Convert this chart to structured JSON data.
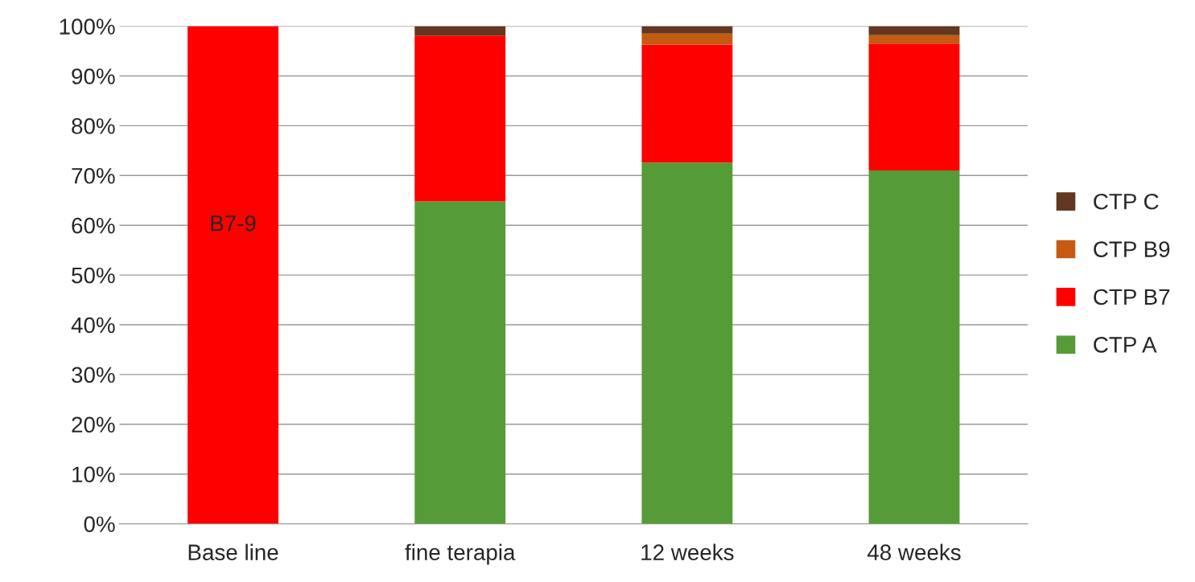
{
  "chart_data": {
    "type": "bar",
    "stacked": true,
    "categories": [
      "Base line",
      "fine terapia",
      "12 weeks",
      "48 weeks"
    ],
    "series": [
      {
        "name": "CTP A",
        "color": "#559b37",
        "values": [
          0,
          64.8,
          72.6,
          71.0
        ]
      },
      {
        "name": "CTP B7",
        "color": "#ff0000",
        "values": [
          100,
          33.3,
          23.7,
          25.5
        ]
      },
      {
        "name": "CTP B9",
        "color": "#c55a11",
        "values": [
          0,
          0,
          2.2,
          1.7
        ]
      },
      {
        "name": "CTP C",
        "color": "#633720",
        "values": [
          0,
          1.9,
          1.5,
          1.8
        ]
      }
    ],
    "ylim": [
      0,
      100
    ],
    "yticks": [
      {
        "value": 0,
        "label": "0%"
      },
      {
        "value": 10,
        "label": "10%"
      },
      {
        "value": 20,
        "label": "20%"
      },
      {
        "value": 30,
        "label": "30%"
      },
      {
        "value": 40,
        "label": "40%"
      },
      {
        "value": 50,
        "label": "50%"
      },
      {
        "value": 60,
        "label": "60%"
      },
      {
        "value": 70,
        "label": "70%"
      },
      {
        "value": 80,
        "label": "80%"
      },
      {
        "value": 90,
        "label": "90%"
      },
      {
        "value": 100,
        "label": "100%"
      }
    ],
    "annotations": [
      "B7-9"
    ],
    "grid": "y",
    "legend": "right"
  }
}
